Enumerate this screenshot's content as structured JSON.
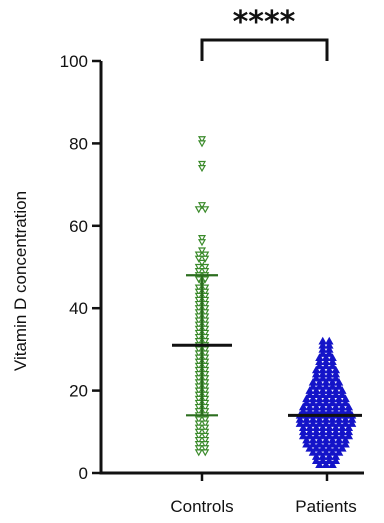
{
  "chart_data": {
    "type": "scatter",
    "ylabel": "Vitamin D concentration",
    "ylim": [
      0,
      100
    ],
    "yticks": [
      "0",
      "20",
      "40",
      "60",
      "80",
      "100"
    ],
    "categories": [
      "Controls",
      "Patients"
    ],
    "significance": "****",
    "grid": false,
    "legend": "none",
    "series": [
      {
        "category": "Controls",
        "marker": "triangle-down-open",
        "color": "#3a8a2a",
        "mean": 31,
        "sd_low": 14,
        "sd_high": 48,
        "values": [
          81,
          80,
          75,
          74,
          65,
          64,
          64,
          57,
          56,
          54,
          53,
          53,
          52,
          52,
          51,
          50,
          50,
          49,
          49,
          48,
          48,
          47,
          47,
          46,
          45,
          45,
          44,
          44,
          43,
          43,
          42,
          42,
          41,
          41,
          40,
          40,
          39,
          39,
          38,
          38,
          37,
          37,
          36,
          36,
          35,
          35,
          34,
          34,
          33,
          33,
          32,
          32,
          31,
          31,
          30,
          30,
          29,
          29,
          28,
          28,
          27,
          27,
          26,
          26,
          25,
          25,
          24,
          24,
          23,
          23,
          22,
          22,
          21,
          21,
          20,
          20,
          19,
          19,
          18,
          18,
          17,
          17,
          16,
          16,
          15,
          15,
          14,
          14,
          13,
          13,
          12,
          12,
          11,
          11,
          10,
          10,
          9,
          9,
          8,
          8,
          7,
          7,
          6,
          6,
          5,
          5
        ]
      },
      {
        "category": "Patients",
        "marker": "triangle-up-filled",
        "color": "#1414c8",
        "mean": 14,
        "values": [
          32,
          32,
          31,
          31,
          30,
          30,
          29,
          29,
          28,
          28,
          28,
          27,
          27,
          27,
          26,
          26,
          26,
          25,
          25,
          25,
          25,
          24,
          24,
          24,
          24,
          23,
          23,
          23,
          23,
          22,
          22,
          22,
          22,
          22,
          21,
          21,
          21,
          21,
          21,
          20,
          20,
          20,
          20,
          20,
          20,
          19,
          19,
          19,
          19,
          19,
          19,
          18,
          18,
          18,
          18,
          18,
          18,
          18,
          17,
          17,
          17,
          17,
          17,
          17,
          17,
          16,
          16,
          16,
          16,
          16,
          16,
          16,
          16,
          15,
          15,
          15,
          15,
          15,
          15,
          15,
          15,
          14,
          14,
          14,
          14,
          14,
          14,
          14,
          14,
          14,
          13,
          13,
          13,
          13,
          13,
          13,
          13,
          13,
          13,
          12,
          12,
          12,
          12,
          12,
          12,
          12,
          12,
          12,
          11,
          11,
          11,
          11,
          11,
          11,
          11,
          11,
          10,
          10,
          10,
          10,
          10,
          10,
          10,
          10,
          9,
          9,
          9,
          9,
          9,
          9,
          9,
          9,
          8,
          8,
          8,
          8,
          8,
          8,
          8,
          7,
          7,
          7,
          7,
          7,
          7,
          7,
          6,
          6,
          6,
          6,
          6,
          6,
          5,
          5,
          5,
          5,
          5,
          4,
          4,
          4,
          4,
          3,
          3,
          3,
          3,
          2,
          2,
          2
        ]
      }
    ]
  }
}
